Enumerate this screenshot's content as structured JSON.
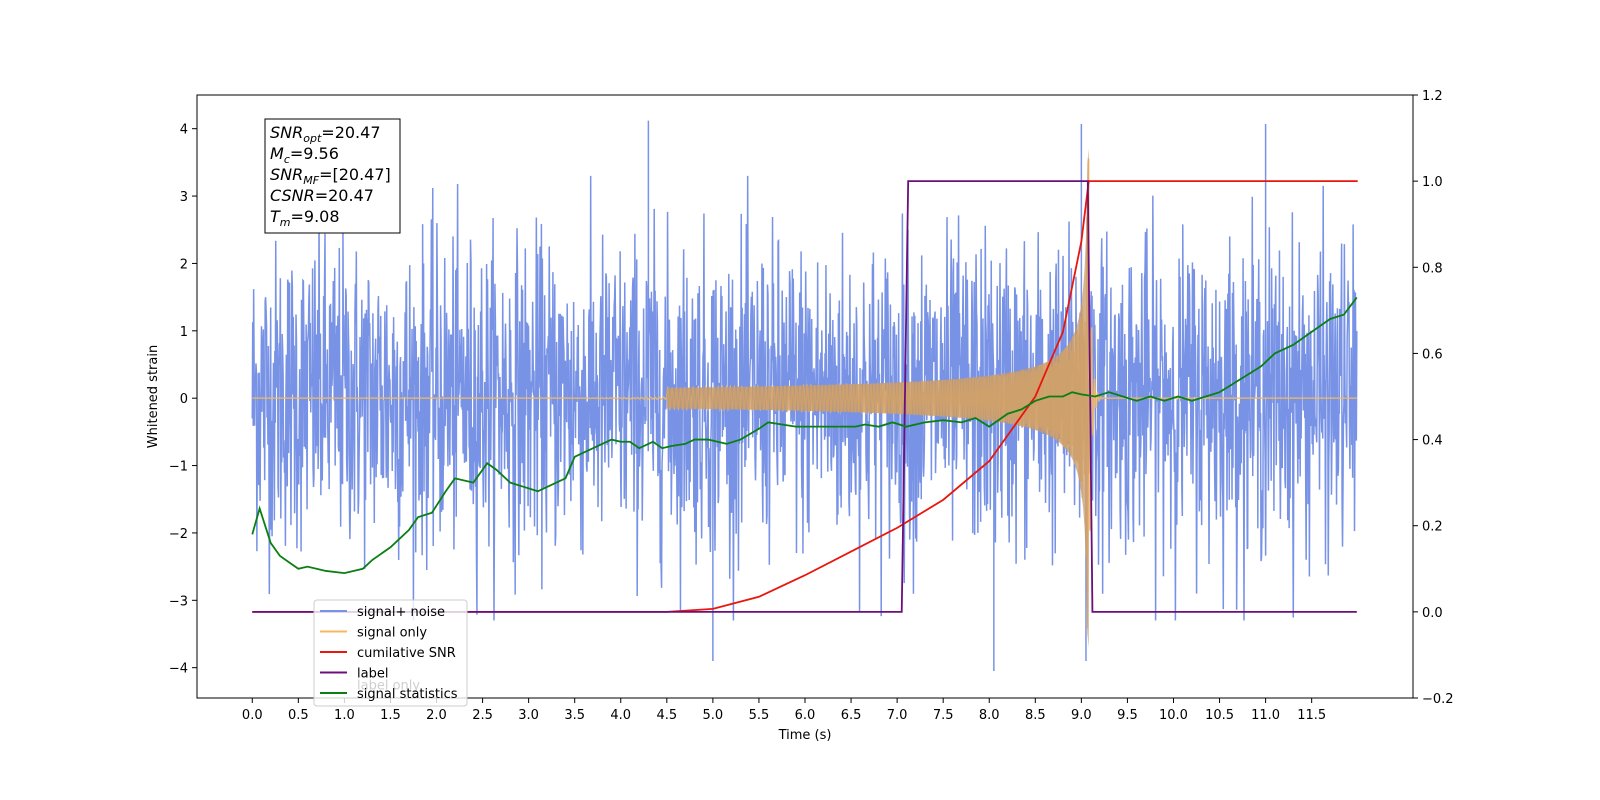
{
  "chart_data": {
    "type": "line",
    "xlabel": "Time (s)",
    "ylabel": "Whitened strain",
    "xlim": [
      -0.6,
      12.6
    ],
    "ylim": [
      -4.45,
      4.5
    ],
    "ylim_right": [
      -0.2,
      1.2
    ],
    "x_ticks": [
      "0.0",
      "0.5",
      "1.0",
      "1.5",
      "2.0",
      "2.5",
      "3.0",
      "3.5",
      "4.0",
      "4.5",
      "5.0",
      "5.5",
      "6.0",
      "6.5",
      "7.0",
      "7.5",
      "8.0",
      "8.5",
      "9.0",
      "9.5",
      "10.0",
      "10.5",
      "11.0",
      "11.5"
    ],
    "y_ticks_left": [
      "4",
      "3",
      "2",
      "1",
      "0",
      "−1",
      "−2",
      "−3",
      "−4"
    ],
    "y_ticks_right": [
      "1.2",
      "1.0",
      "0.8",
      "0.6",
      "0.4",
      "0.2",
      "0.0",
      "−0.2"
    ],
    "grid": false,
    "legend_position": "lower-left",
    "info_box": {
      "lines": [
        {
          "base": "SNR",
          "sub": "opt",
          "rest": "=20.47"
        },
        {
          "base": "M",
          "sub": "c",
          "rest": "=9.56"
        },
        {
          "base": "SNR",
          "sub": "MF",
          "rest": "=[20.47]"
        },
        {
          "base": "CSNR",
          "sub": "",
          "rest": "=20.47"
        },
        {
          "base": "T",
          "sub": "m",
          "rest": "=9.08"
        }
      ]
    },
    "series": [
      {
        "name": "signal+ noise",
        "axis": "left",
        "color": "#7893e6",
        "kind": "noise",
        "x_range": [
          0.0,
          11.99
        ],
        "typical_range": [
          -2.0,
          2.1
        ],
        "extremes": [
          [
            4.3,
            4.12
          ],
          [
            9.0,
            4.07
          ],
          [
            11.0,
            4.07
          ],
          [
            8.05,
            -4.05
          ],
          [
            5.0,
            -3.9
          ],
          [
            9.05,
            -3.9
          ]
        ]
      },
      {
        "name": "signal only",
        "axis": "left",
        "color": "#f5b85f",
        "kind": "chirp",
        "x_range": [
          0.0,
          11.99
        ],
        "merger_time": 9.08,
        "peak_amplitude": 3.7
      },
      {
        "name": "cumilative SNR",
        "axis": "right",
        "color": "#e8160c",
        "points": [
          [
            0.0,
            0.0
          ],
          [
            4.5,
            0.0
          ],
          [
            5.0,
            0.007
          ],
          [
            5.5,
            0.035
          ],
          [
            6.0,
            0.085
          ],
          [
            6.5,
            0.14
          ],
          [
            7.0,
            0.195
          ],
          [
            7.5,
            0.26
          ],
          [
            8.0,
            0.35
          ],
          [
            8.5,
            0.5
          ],
          [
            8.8,
            0.65
          ],
          [
            9.0,
            0.86
          ],
          [
            9.08,
            1.0
          ],
          [
            12.0,
            1.0
          ]
        ]
      },
      {
        "name": "label",
        "axis": "right",
        "color": "#6b0f7a",
        "points": [
          [
            0.0,
            0.0
          ],
          [
            7.05,
            0.0
          ],
          [
            7.12,
            1.0
          ],
          [
            9.07,
            1.0
          ],
          [
            9.12,
            0.0
          ],
          [
            11.99,
            0.0
          ]
        ]
      },
      {
        "name": "signal statistics",
        "axis": "right",
        "color": "#0b7f12",
        "points": [
          [
            0.0,
            0.18
          ],
          [
            0.08,
            0.24
          ],
          [
            0.2,
            0.16
          ],
          [
            0.3,
            0.13
          ],
          [
            0.4,
            0.115
          ],
          [
            0.5,
            0.1
          ],
          [
            0.6,
            0.105
          ],
          [
            0.8,
            0.095
          ],
          [
            1.0,
            0.09
          ],
          [
            1.2,
            0.1
          ],
          [
            1.3,
            0.12
          ],
          [
            1.5,
            0.15
          ],
          [
            1.7,
            0.19
          ],
          [
            1.8,
            0.22
          ],
          [
            1.95,
            0.23
          ],
          [
            2.1,
            0.28
          ],
          [
            2.2,
            0.31
          ],
          [
            2.4,
            0.3
          ],
          [
            2.55,
            0.345
          ],
          [
            2.65,
            0.33
          ],
          [
            2.8,
            0.3
          ],
          [
            2.95,
            0.29
          ],
          [
            3.1,
            0.28
          ],
          [
            3.2,
            0.29
          ],
          [
            3.4,
            0.31
          ],
          [
            3.5,
            0.36
          ],
          [
            3.6,
            0.37
          ],
          [
            3.7,
            0.38
          ],
          [
            3.9,
            0.4
          ],
          [
            4.0,
            0.395
          ],
          [
            4.1,
            0.395
          ],
          [
            4.2,
            0.38
          ],
          [
            4.35,
            0.395
          ],
          [
            4.45,
            0.38
          ],
          [
            4.55,
            0.385
          ],
          [
            4.7,
            0.39
          ],
          [
            4.8,
            0.4
          ],
          [
            4.95,
            0.4
          ],
          [
            5.15,
            0.39
          ],
          [
            5.3,
            0.4
          ],
          [
            5.5,
            0.425
          ],
          [
            5.6,
            0.44
          ],
          [
            5.75,
            0.435
          ],
          [
            5.9,
            0.43
          ],
          [
            6.1,
            0.43
          ],
          [
            6.3,
            0.43
          ],
          [
            6.55,
            0.43
          ],
          [
            6.65,
            0.435
          ],
          [
            6.8,
            0.43
          ],
          [
            6.95,
            0.44
          ],
          [
            7.1,
            0.43
          ],
          [
            7.3,
            0.44
          ],
          [
            7.5,
            0.445
          ],
          [
            7.7,
            0.44
          ],
          [
            7.85,
            0.45
          ],
          [
            8.0,
            0.43
          ],
          [
            8.2,
            0.46
          ],
          [
            8.35,
            0.47
          ],
          [
            8.5,
            0.49
          ],
          [
            8.65,
            0.5
          ],
          [
            8.8,
            0.5
          ],
          [
            8.9,
            0.51
          ],
          [
            9.0,
            0.505
          ],
          [
            9.15,
            0.5
          ],
          [
            9.3,
            0.51
          ],
          [
            9.45,
            0.5
          ],
          [
            9.6,
            0.49
          ],
          [
            9.75,
            0.5
          ],
          [
            9.9,
            0.49
          ],
          [
            10.05,
            0.5
          ],
          [
            10.2,
            0.49
          ],
          [
            10.35,
            0.5
          ],
          [
            10.5,
            0.51
          ],
          [
            10.65,
            0.53
          ],
          [
            10.8,
            0.55
          ],
          [
            10.95,
            0.57
          ],
          [
            11.1,
            0.6
          ],
          [
            11.3,
            0.62
          ],
          [
            11.5,
            0.65
          ],
          [
            11.7,
            0.68
          ],
          [
            11.85,
            0.69
          ],
          [
            11.99,
            0.73
          ]
        ]
      },
      {
        "name": "label only",
        "axis": "right",
        "color": "#cfcfcf",
        "legend_only": true
      }
    ]
  }
}
